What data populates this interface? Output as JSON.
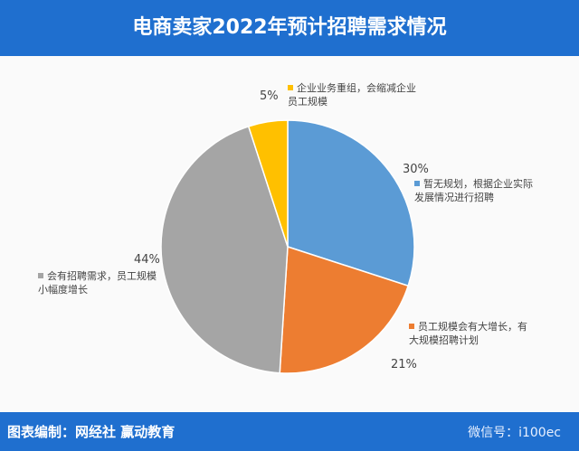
{
  "chart_data": {
    "type": "pie",
    "title": "电商卖家2022年预计招聘需求情况",
    "categories": [
      "暂无规划，根据企业实际发展情况进行招聘",
      "员工规模会有大增长，有大规模招聘计划",
      "会有招聘需求，员工规模小幅度增长",
      "企业业务重组，会缩减企业员工规模"
    ],
    "values": [
      30,
      21,
      44,
      5
    ],
    "value_labels": [
      "30%",
      "21%",
      "44%",
      "5%"
    ],
    "colors": [
      "#5b9bd5",
      "#ed7d31",
      "#a5a5a5",
      "#ffc000"
    ],
    "source": "图表编制：网经社 赢动教育",
    "wechat": "微信号：i100ec"
  }
}
